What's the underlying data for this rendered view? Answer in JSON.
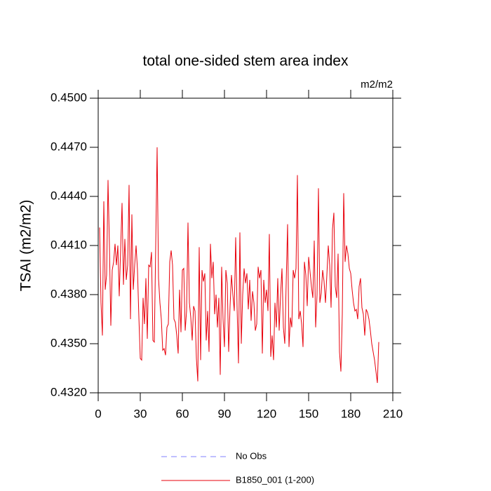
{
  "chart_data": {
    "type": "line",
    "title": "total one-sided stem area index",
    "unit_label": "m2/m2",
    "ylabel": "TSAI  (m2/m2)",
    "xlim": [
      0,
      210
    ],
    "xticks": [
      0,
      30,
      60,
      90,
      120,
      150,
      180,
      210
    ],
    "ylim": [
      0.432,
      0.45
    ],
    "yticks": [
      {
        "value": 0.432,
        "label": "0.4320"
      },
      {
        "value": 0.435,
        "label": "0.4350"
      },
      {
        "value": 0.438,
        "label": "0.4380"
      },
      {
        "value": 0.441,
        "label": "0.4410"
      },
      {
        "value": 0.444,
        "label": "0.4440"
      },
      {
        "value": 0.447,
        "label": "0.4470"
      },
      {
        "value": 0.45,
        "label": "0.4500"
      }
    ],
    "x": [
      1,
      2,
      3,
      4,
      5,
      6,
      7,
      8,
      9,
      10,
      11,
      12,
      13,
      14,
      15,
      16,
      17,
      18,
      19,
      20,
      21,
      22,
      23,
      24,
      25,
      26,
      27,
      28,
      29,
      30,
      31,
      32,
      33,
      34,
      35,
      36,
      37,
      38,
      39,
      40,
      41,
      42,
      43,
      44,
      45,
      46,
      47,
      48,
      49,
      50,
      51,
      52,
      53,
      54,
      55,
      56,
      57,
      58,
      59,
      60,
      61,
      62,
      63,
      64,
      65,
      66,
      67,
      68,
      69,
      70,
      71,
      72,
      73,
      74,
      75,
      76,
      77,
      78,
      79,
      80,
      81,
      82,
      83,
      84,
      85,
      86,
      87,
      88,
      89,
      90,
      91,
      92,
      93,
      94,
      95,
      96,
      97,
      98,
      99,
      100,
      101,
      102,
      103,
      104,
      105,
      106,
      107,
      108,
      109,
      110,
      111,
      112,
      113,
      114,
      115,
      116,
      117,
      118,
      119,
      120,
      121,
      122,
      123,
      124,
      125,
      126,
      127,
      128,
      129,
      130,
      131,
      132,
      133,
      134,
      135,
      136,
      137,
      138,
      139,
      140,
      141,
      142,
      143,
      144,
      145,
      146,
      147,
      148,
      149,
      150,
      151,
      152,
      153,
      154,
      155,
      156,
      157,
      158,
      159,
      160,
      161,
      162,
      163,
      164,
      165,
      166,
      167,
      168,
      169,
      170,
      171,
      172,
      173,
      174,
      175,
      176,
      177,
      178,
      179,
      180,
      181,
      182,
      183,
      184,
      185,
      186,
      187,
      188,
      189,
      190,
      191,
      192,
      193,
      194,
      195,
      196,
      197,
      198,
      199,
      200
    ],
    "series": [
      {
        "name": "No Obs",
        "color": "#8080ff",
        "dash": true,
        "values": [
          null,
          null,
          null,
          null,
          null,
          null,
          null,
          null,
          null,
          null,
          null,
          null,
          null,
          null,
          null,
          null,
          null,
          null,
          null,
          null,
          null,
          null,
          null,
          null,
          null,
          null,
          null,
          null,
          null,
          null,
          null,
          null,
          null,
          null,
          null,
          null,
          null,
          null,
          null,
          null,
          null,
          null,
          null,
          null,
          null,
          null,
          null,
          null,
          null,
          null,
          null,
          null,
          null,
          null,
          null,
          null,
          null,
          null,
          null,
          null,
          null,
          null,
          null,
          null,
          null,
          null,
          null,
          null,
          null,
          null,
          null,
          null,
          null,
          null,
          null,
          null,
          null,
          null,
          null,
          null,
          null,
          null,
          null,
          null,
          null,
          null,
          null,
          null,
          null,
          null,
          null,
          null,
          null,
          null,
          null,
          null,
          null,
          null,
          null,
          null,
          null,
          null,
          null,
          null,
          null,
          null,
          null,
          null,
          null,
          null,
          null,
          null,
          null,
          null,
          null,
          null,
          null,
          null,
          null,
          null,
          null,
          null,
          null,
          null,
          null,
          null,
          null,
          null,
          null,
          null,
          null,
          null,
          null,
          null,
          null,
          null,
          null,
          null,
          null,
          null,
          null,
          null,
          null,
          null,
          null,
          null,
          null,
          null,
          null,
          null,
          null,
          null,
          null,
          null,
          null,
          null,
          null,
          null,
          null,
          null,
          null,
          null,
          null,
          null,
          null,
          null,
          null,
          null,
          null,
          null,
          null,
          null,
          null,
          null,
          null,
          null,
          null,
          null,
          null,
          null,
          null,
          null,
          null,
          null,
          null,
          null,
          null,
          null,
          null,
          null,
          null,
          null,
          null,
          null,
          null,
          null,
          null,
          null,
          null,
          null
        ]
      },
      {
        "name": "B1850_001 (1-200)",
        "color": "#e8000b",
        "dash": false,
        "values": [
          0.4421,
          0.4375,
          0.4355,
          0.4437,
          0.4383,
          0.4392,
          0.445,
          0.441,
          0.4361,
          0.4395,
          0.44,
          0.4411,
          0.4398,
          0.441,
          0.4379,
          0.4408,
          0.4436,
          0.4386,
          0.4414,
          0.4389,
          0.4398,
          0.4447,
          0.4365,
          0.4429,
          0.4383,
          0.4398,
          0.441,
          0.4395,
          0.4366,
          0.4341,
          0.434,
          0.4378,
          0.4362,
          0.439,
          0.4353,
          0.4398,
          0.4397,
          0.4406,
          0.4352,
          0.4351,
          0.441,
          0.447,
          0.439,
          0.4375,
          0.4365,
          0.4346,
          0.4347,
          0.4343,
          0.436,
          0.4362,
          0.44,
          0.4407,
          0.4398,
          0.4365,
          0.4363,
          0.4355,
          0.4344,
          0.4383,
          0.4357,
          0.4395,
          0.4396,
          0.4358,
          0.437,
          0.4424,
          0.4375,
          0.4366,
          0.4352,
          0.4373,
          0.437,
          0.4341,
          0.4327,
          0.4409,
          0.434,
          0.4395,
          0.4388,
          0.4393,
          0.4352,
          0.437,
          0.4345,
          0.4411,
          0.439,
          0.44,
          0.4368,
          0.438,
          0.436,
          0.4378,
          0.4331,
          0.4397,
          0.4365,
          0.4348,
          0.4395,
          0.4387,
          0.4345,
          0.4373,
          0.4392,
          0.438,
          0.437,
          0.4415,
          0.4372,
          0.4338,
          0.4418,
          0.435,
          0.438,
          0.4396,
          0.4387,
          0.4393,
          0.4371,
          0.4389,
          0.4364,
          0.4382,
          0.4375,
          0.4358,
          0.4362,
          0.4397,
          0.439,
          0.4395,
          0.4344,
          0.4389,
          0.4375,
          0.4383,
          0.437,
          0.4417,
          0.4342,
          0.4355,
          0.434,
          0.4375,
          0.436,
          0.439,
          0.4358,
          0.438,
          0.4396,
          0.436,
          0.435,
          0.4387,
          0.4423,
          0.4348,
          0.4366,
          0.436,
          0.4395,
          0.439,
          0.4396,
          0.4453,
          0.4365,
          0.437,
          0.4362,
          0.4348,
          0.44,
          0.4392,
          0.4373,
          0.4403,
          0.4394,
          0.4385,
          0.4378,
          0.4413,
          0.436,
          0.438,
          0.4445,
          0.4375,
          0.4381,
          0.4395,
          0.4388,
          0.4375,
          0.4392,
          0.441,
          0.4398,
          0.4372,
          0.442,
          0.443,
          0.4385,
          0.4378,
          0.4405,
          0.4345,
          0.4333,
          0.4368,
          0.4442,
          0.44,
          0.441,
          0.4405,
          0.4396,
          0.4393,
          0.4383,
          0.4375,
          0.437,
          0.4371,
          0.4365,
          0.4385,
          0.439,
          0.4372,
          0.4368,
          0.4355,
          0.4371,
          0.4369,
          0.4365,
          0.4358,
          0.435,
          0.4345,
          0.434,
          0.4333,
          0.4326,
          0.4351
        ]
      }
    ]
  }
}
